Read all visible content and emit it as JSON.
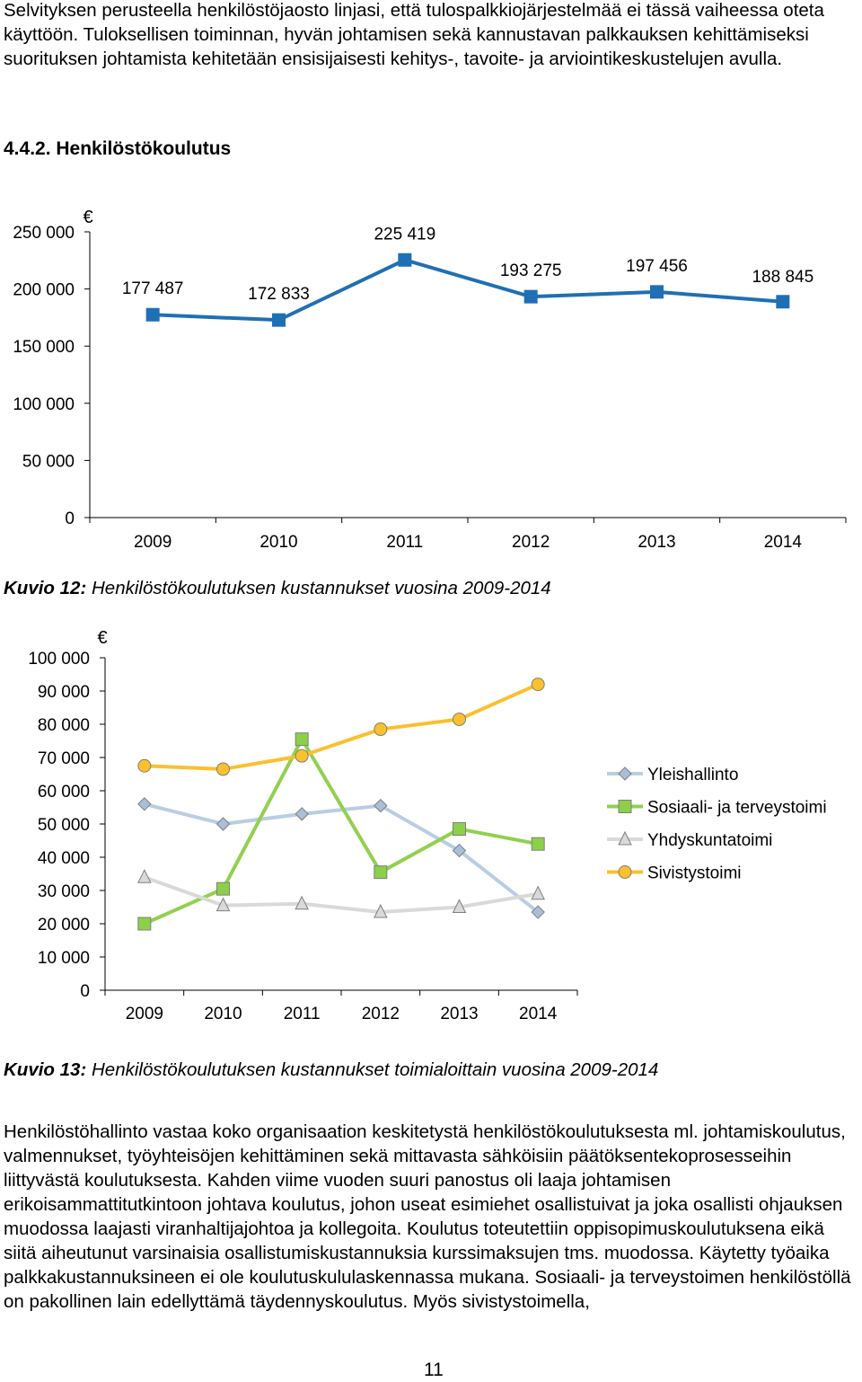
{
  "intro_paragraph": "Selvityksen perusteella henkilöstöjaosto linjasi, että tulospalkkiojärjestelmää ei tässä vaiheessa oteta käyttöön. Tuloksellisen toiminnan, hyvän johtamisen sekä kannustavan palkkauksen kehittämiseksi suorituksen johtamista kehitetään ensisijaisesti kehitys-, tavoite- ja arviointikeskustelujen avulla.",
  "section_heading": "4.4.2. Henkilöstökoulutus",
  "figure12": {
    "label": "Kuvio 12:",
    "text": "Henkilöstökoulutuksen kustannukset vuosina 2009-2014"
  },
  "figure13": {
    "label": "Kuvio 13:",
    "text": "Henkilöstökoulutuksen kustannukset toimialoittain vuosina 2009-2014"
  },
  "body_paragraph": "Henkilöstöhallinto vastaa koko organisaation keskitetystä henkilöstökoulutuksesta ml. johtamiskoulutus, valmennukset, työyhteisöjen kehittäminen sekä mittavasta sähköisiin päätöksentekoprosesseihin liittyvästä koulutuksesta. Kahden viime vuoden suuri panostus oli laaja johtamisen erikoisammattitutkintoon johtava koulutus, johon useat esimiehet osallistuivat ja joka osallisti ohjauksen muodossa laajasti viranhaltijajohtoa ja kollegoita. Koulutus toteutettiin oppisopimuskoulutuksena eikä siitä aiheutunut varsinaisia osallistumiskustannuksia kurssimaksujen tms. muodossa. Käytetty työaika palkkakustannuksineen ei ole koulutuskululaskennassa mukana. Sosiaali- ja terveystoimen henkilöstöllä on pakollinen lain edellyttämä täydennyskoulutus. Myös sivistystoimella,",
  "page_number": "11",
  "chart_data": [
    {
      "type": "line",
      "unit_label": "€",
      "categories": [
        "2009",
        "2010",
        "2011",
        "2012",
        "2013",
        "2014"
      ],
      "ylim": [
        0,
        250000
      ],
      "y_ticks": [
        "0",
        "50 000",
        "100 000",
        "150 000",
        "200 000",
        "250 000"
      ],
      "grid": false,
      "color": "#1f6fb5",
      "series": [
        {
          "values": [
            177487,
            172833,
            225419,
            193275,
            197456,
            188845
          ],
          "data_labels": [
            "177 487",
            "172 833",
            "225 419",
            "193 275",
            "197 456",
            "188 845"
          ]
        }
      ]
    },
    {
      "type": "line",
      "unit_label": "€",
      "categories": [
        "2009",
        "2010",
        "2011",
        "2012",
        "2013",
        "2014"
      ],
      "ylim": [
        0,
        100000
      ],
      "y_ticks": [
        "0",
        "10 000",
        "20 000",
        "30 000",
        "40 000",
        "50 000",
        "60 000",
        "70 000",
        "80 000",
        "90 000",
        "100 000"
      ],
      "grid": false,
      "legend_position": "right",
      "series": [
        {
          "name": "Yleishallinto",
          "values": [
            56000,
            50000,
            53000,
            55500,
            42000,
            23500
          ],
          "color": "#b9cde4",
          "marker": "diamond",
          "marker_color": "#a9bfd9"
        },
        {
          "name": "Sosiaali- ja terveystoimi",
          "values": [
            20000,
            30500,
            75500,
            35500,
            48500,
            44000
          ],
          "color": "#92d050",
          "marker": "square",
          "marker_color": "#8cd04a"
        },
        {
          "name": "Yhdyskuntatoimi",
          "values": [
            34000,
            25500,
            26000,
            23500,
            25000,
            29000
          ],
          "color": "#d9d9d9",
          "marker": "triangle",
          "marker_color": "#d9d9d9"
        },
        {
          "name": "Sivistystoimi",
          "values": [
            67500,
            66500,
            70500,
            78500,
            81500,
            92000
          ],
          "color": "#fbc02d",
          "marker": "circle",
          "marker_color": "#fbc02d"
        }
      ]
    }
  ]
}
